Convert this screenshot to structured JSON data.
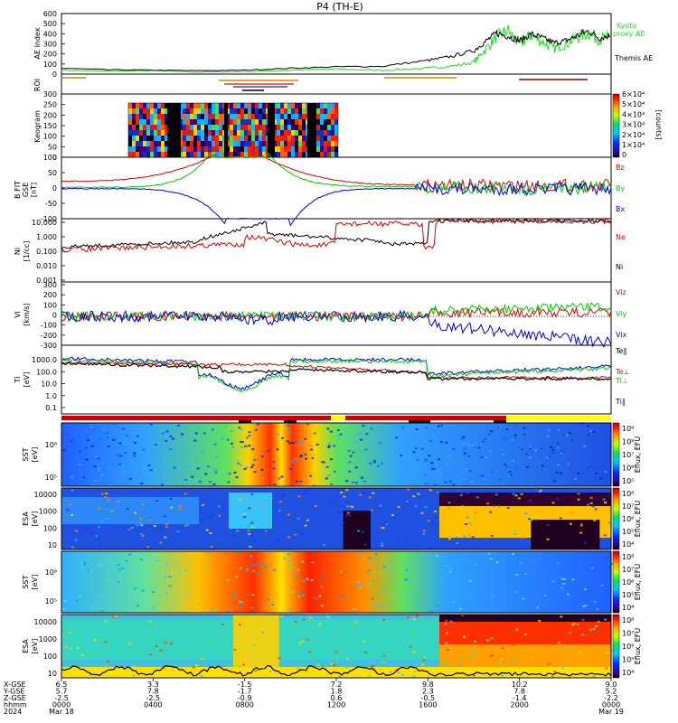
{
  "title": "P4 (TH-E)",
  "colors": {
    "black": "#000000",
    "red": "#dd0000",
    "green": "#00cc00",
    "blue": "#0000dd",
    "orange": "#e08000",
    "yellow": "#ffff00",
    "darkred": "#900000",
    "bright_green": "#22dd22"
  },
  "panels": {
    "ae": {
      "ylabel": "AE index",
      "yticks": [
        "600",
        "500",
        "400",
        "300",
        "200",
        "100",
        "0"
      ],
      "legend_kyoto": "Kyoto",
      "legend_proxy": "proxy AE",
      "legend_themis": "Themis AE"
    },
    "roi": {
      "ylabel": "ROI"
    },
    "keogram": {
      "ylabel": "Keogram",
      "yticks": [
        "300",
        "250",
        "200",
        "150",
        "100",
        "50",
        "0"
      ],
      "colorbar_ticks": [
        "6×10⁴",
        "5×10⁴",
        "4×10⁴",
        "3×10⁴",
        "2×10⁴",
        "1×10⁴",
        "0"
      ],
      "colorbar_unit": "[counts]"
    },
    "bfield": {
      "ylabel1": "B FIT",
      "ylabel2": "GSE",
      "ylabel3": "[nT]",
      "yticks": [
        "100",
        "50",
        "0",
        "-50",
        "-100"
      ],
      "labels": [
        "Bz",
        "By",
        "Bx"
      ]
    },
    "density": {
      "ylabel1": "Ni",
      "ylabel2": "[1/cc]",
      "yticks": [
        "10.000",
        "1.000",
        "0.100",
        "0.010",
        "0.001"
      ],
      "labels": [
        "Ne",
        "Ni"
      ]
    },
    "velocity": {
      "ylabel1": "Vi",
      "ylabel2": "[km/s]",
      "yticks": [
        "300",
        "200",
        "100",
        "0",
        "-100",
        "-200",
        "-300"
      ],
      "labels": [
        "Viz",
        "Viy",
        "Vix"
      ]
    },
    "temperature": {
      "ylabel1": "Ti",
      "ylabel2": "[eV]",
      "yticks": [
        "1000.0",
        "100.0",
        "10.0",
        "1.0",
        "0.1"
      ],
      "labels": [
        "Te∥",
        "Te⊥",
        "Ti⊥",
        "Ti∥"
      ]
    },
    "sst_e": {
      "ylabel1": "SST",
      "ylabel2": "[eV]",
      "yticks": [
        "10⁶",
        "10⁵"
      ],
      "cb_label": "Eflux, EFU",
      "cb_ticks": [
        "10⁹",
        "10⁸",
        "10⁷",
        "10⁶",
        "10⁵"
      ]
    },
    "esa_e": {
      "ylabel1": "ESA",
      "ylabel2": "[eV]",
      "yticks": [
        "10000",
        "1000",
        "100",
        "10"
      ],
      "cb_label": "Eflux, EFU",
      "cb_ticks": [
        "10⁸",
        "10⁷",
        "10⁶",
        "10⁵",
        "10⁴"
      ]
    },
    "sst_i": {
      "ylabel1": "SST",
      "ylabel2": "[eV]",
      "yticks": [
        "10⁶",
        "10⁵"
      ],
      "cb_label": "Eflux, EFU",
      "cb_ticks": [
        "10⁸",
        "10⁷",
        "10⁶",
        "10⁵",
        "10⁴"
      ]
    },
    "esa_i": {
      "ylabel1": "ESA",
      "ylabel2": "[eV]",
      "yticks": [
        "10000",
        "1000",
        "100",
        "10"
      ],
      "cb_label": "Eflux, EFU",
      "cb_ticks": [
        "10⁸",
        "10⁷",
        "10⁶",
        "10⁵",
        "10⁴"
      ]
    }
  },
  "xaxis": {
    "row_labels": [
      "X-GSE",
      "Y-GSE",
      "Z-GSE",
      "hhmm",
      "2024"
    ],
    "columns": [
      [
        "6.5",
        "5.7",
        "-2.5",
        "0000",
        "Mar 18"
      ],
      [
        "3.3",
        "7.8",
        "-2.5",
        "0400",
        ""
      ],
      [
        "-1.5",
        "-1.7",
        "-0.9",
        "0800",
        ""
      ],
      [
        "7.2",
        "1.8",
        "0.6",
        "1200",
        ""
      ],
      [
        "9.8",
        "2.3",
        "-0.5",
        "1600",
        ""
      ],
      [
        "10.2",
        "7.8",
        "-1.4",
        "2000",
        ""
      ],
      [
        "9.0",
        "5.2",
        "-2.2",
        "0000",
        "Mar 19"
      ]
    ]
  },
  "chart_data": {
    "type": "line",
    "title": "P4 (TH-E)",
    "x_range_hours": [
      0,
      24
    ],
    "series": [
      {
        "name": "Kyoto proxy AE",
        "x": [
          0,
          2,
          4,
          6,
          8,
          10,
          12,
          14,
          16,
          17,
          18,
          18.5,
          19,
          19.5,
          20,
          20.5,
          21,
          21.5,
          22,
          22.5,
          23,
          23.5,
          24
        ],
        "values": [
          40,
          30,
          35,
          20,
          25,
          40,
          50,
          40,
          60,
          80,
          120,
          250,
          380,
          450,
          300,
          400,
          330,
          260,
          300,
          380,
          420,
          360,
          380
        ]
      },
      {
        "name": "Themis AE",
        "x": [
          0,
          2,
          4,
          6,
          8,
          10,
          12,
          14,
          16,
          17,
          18,
          18.5,
          19,
          19.5,
          20,
          20.5,
          21,
          21.5,
          22,
          22.5,
          23,
          23.5,
          24
        ],
        "values": [
          60,
          45,
          40,
          35,
          40,
          60,
          75,
          80,
          140,
          180,
          240,
          330,
          420,
          390,
          340,
          410,
          370,
          320,
          340,
          390,
          440,
          370,
          400
        ]
      }
    ]
  }
}
